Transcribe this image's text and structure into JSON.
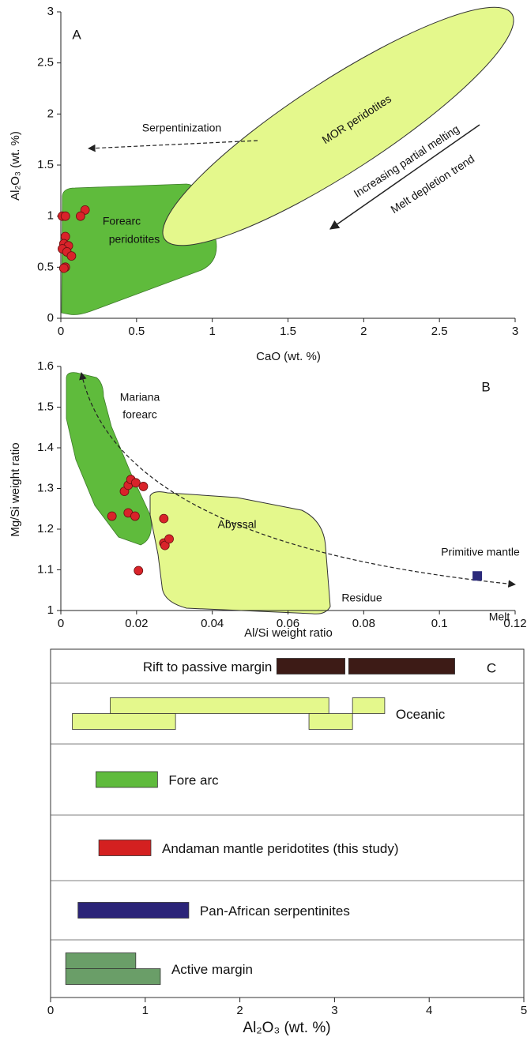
{
  "chart_data": [
    {
      "type": "scatter",
      "label": "A",
      "xlabel": "CaO (wt. %)",
      "ylabel": "Al₂O₃ (wt. %)",
      "xlim": [
        0,
        3
      ],
      "ylim": [
        0,
        3
      ],
      "xticks": [
        0,
        0.5,
        1,
        1.5,
        2,
        2.5,
        3
      ],
      "yticks": [
        0,
        0.5,
        1,
        1.5,
        2,
        2.5,
        3
      ],
      "series": [
        {
          "color": "#d9232a",
          "x": [
            0.01,
            0.03,
            0.16,
            0.13,
            0.03,
            0.02,
            0.05,
            0.01,
            0.04,
            0.07,
            0.03,
            0.02
          ],
          "values": [
            1.0,
            1.0,
            1.06,
            1.0,
            0.8,
            0.73,
            0.71,
            0.68,
            0.65,
            0.61,
            0.5,
            0.49
          ]
        }
      ],
      "annotations": [
        "Serpentinization",
        "MOR peridotites",
        "Increasing partial melting",
        "Melt depletion trend",
        "Forearc",
        "peridotites"
      ]
    },
    {
      "type": "scatter",
      "label": "B",
      "xlabel": "Al/Si weight ratio",
      "ylabel": "Mg/Si weight ratio",
      "xlim": [
        0,
        0.12
      ],
      "ylim": [
        1,
        1.6
      ],
      "xticks": [
        0,
        0.02,
        0.04,
        0.06,
        0.08,
        0.1,
        0.12
      ],
      "yticks": [
        1,
        1.1,
        1.2,
        1.3,
        1.4,
        1.5,
        1.6
      ],
      "series": [
        {
          "color": "#d9232a",
          "x": [
            0.0135,
            0.0168,
            0.0178,
            0.0185,
            0.0198,
            0.0218,
            0.0178,
            0.0196,
            0.0272,
            0.0272,
            0.0275,
            0.0286,
            0.0205
          ],
          "values": [
            1.232,
            1.293,
            1.308,
            1.322,
            1.314,
            1.305,
            1.24,
            1.232,
            1.226,
            1.166,
            1.16,
            1.176,
            1.098
          ]
        },
        {
          "name": "Primitive mantle",
          "color": "#2b2a7a",
          "marker": "square",
          "x": [
            0.11
          ],
          "values": [
            1.085
          ]
        }
      ],
      "annotations": [
        "Mariana",
        "forearc",
        "Abyssal",
        "Residue",
        "Melt"
      ]
    },
    {
      "type": "range",
      "label": "C",
      "xlabel": "Al₂O₃ (wt. %)",
      "xlim": [
        0,
        5
      ],
      "xticks": [
        0,
        1,
        2,
        3,
        4,
        5
      ],
      "series": [
        {
          "name": "Rift to passive margin",
          "color": "#3d1b16",
          "ranges": [
            [
              [
                2.39,
                3.11
              ],
              [
                3.15,
                4.27
              ]
            ]
          ]
        },
        {
          "name": "Oceanic",
          "color": "#e4f88c",
          "ranges": [
            [
              [
                0.63,
                2.94
              ],
              [
                3.19,
                3.53
              ]
            ],
            [
              [
                0.23,
                1.32
              ],
              [
                2.73,
                3.19
              ]
            ]
          ]
        },
        {
          "name": "Fore arc",
          "color": "#5fbb3c",
          "ranges": [
            [
              [
                0.48,
                1.13
              ]
            ]
          ]
        },
        {
          "name": "Andaman mantle peridotites (this study)",
          "color": "#d42020",
          "ranges": [
            [
              [
                0.51,
                1.06
              ]
            ]
          ]
        },
        {
          "name": "Pan-African serpentinites",
          "color": "#2b2478",
          "ranges": [
            [
              [
                0.29,
                1.46
              ]
            ]
          ]
        },
        {
          "name": "Active margin",
          "color": "#6a9e68",
          "ranges": [
            [
              [
                0.16,
                0.9
              ]
            ],
            [
              [
                0.16,
                1.16
              ]
            ]
          ]
        }
      ]
    }
  ]
}
